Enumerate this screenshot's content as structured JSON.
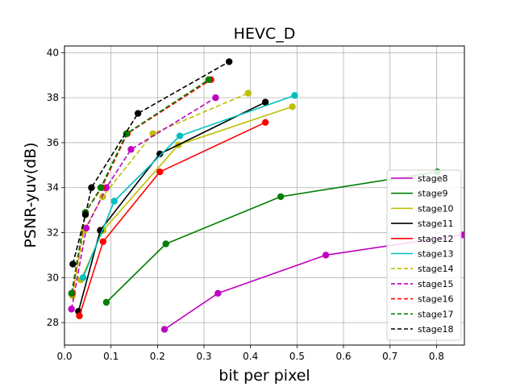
{
  "chart_data": {
    "type": "line",
    "title": "HEVC_D",
    "xlabel": "bit per pixel",
    "ylabel": "PSNR-yuv(dB)",
    "xlim": [
      0.0,
      0.86
    ],
    "ylim": [
      27.0,
      40.3
    ],
    "xticks": [
      "0.0",
      "0.1",
      "0.2",
      "0.3",
      "0.4",
      "0.5",
      "0.6",
      "0.7",
      "0.8"
    ],
    "yticks": [
      "28",
      "30",
      "32",
      "34",
      "36",
      "38",
      "40"
    ],
    "grid": true,
    "legend_position": "lower-right",
    "series": [
      {
        "name": "stage8",
        "color": "#bf00bf",
        "dash": false,
        "x": [
          0.215,
          0.33,
          0.562,
          0.855
        ],
        "y": [
          27.7,
          29.3,
          31.0,
          31.9
        ]
      },
      {
        "name": "stage9",
        "color": "#008000",
        "dash": false,
        "x": [
          0.09,
          0.218,
          0.465,
          0.802
        ],
        "y": [
          28.9,
          31.5,
          33.6,
          34.7
        ]
      },
      {
        "name": "stage10",
        "color": "#bfbf00",
        "dash": false,
        "x": [
          0.035,
          0.083,
          0.245,
          0.49
        ],
        "y": [
          29.9,
          32.1,
          35.9,
          37.6
        ]
      },
      {
        "name": "stage11",
        "color": "#000000",
        "dash": false,
        "x": [
          0.03,
          0.077,
          0.205,
          0.432
        ],
        "y": [
          28.5,
          32.1,
          35.5,
          37.8
        ]
      },
      {
        "name": "stage12",
        "color": "#ff0000",
        "dash": false,
        "x": [
          0.032,
          0.083,
          0.205,
          0.432
        ],
        "y": [
          28.3,
          31.6,
          34.7,
          36.9
        ]
      },
      {
        "name": "stage13",
        "color": "#00bfbf",
        "dash": false,
        "x": [
          0.04,
          0.107,
          0.248,
          0.495
        ],
        "y": [
          30.0,
          33.4,
          36.3,
          38.1
        ]
      },
      {
        "name": "stage14",
        "color": "#bfbf00",
        "dash": true,
        "x": [
          0.017,
          0.042,
          0.082,
          0.19,
          0.395
        ],
        "y": [
          29.2,
          32.1,
          33.6,
          36.4,
          38.2
        ]
      },
      {
        "name": "stage15",
        "color": "#bf00bf",
        "dash": true,
        "x": [
          0.015,
          0.047,
          0.09,
          0.143,
          0.325
        ],
        "y": [
          28.6,
          32.2,
          34.0,
          35.7,
          38.0
        ]
      },
      {
        "name": "stage16",
        "color": "#ff0000",
        "dash": true,
        "x": [
          0.017,
          0.045,
          0.08,
          0.135,
          0.315
        ],
        "y": [
          29.3,
          32.9,
          34.0,
          36.4,
          38.8
        ]
      },
      {
        "name": "stage17",
        "color": "#008000",
        "dash": true,
        "x": [
          0.015,
          0.045,
          0.078,
          0.133,
          0.31
        ],
        "y": [
          29.3,
          32.9,
          34.0,
          36.4,
          38.8
        ]
      },
      {
        "name": "stage18",
        "color": "#000000",
        "dash": true,
        "x": [
          0.018,
          0.045,
          0.058,
          0.158,
          0.354
        ],
        "y": [
          30.6,
          32.8,
          34.0,
          37.3,
          39.6
        ]
      }
    ]
  }
}
